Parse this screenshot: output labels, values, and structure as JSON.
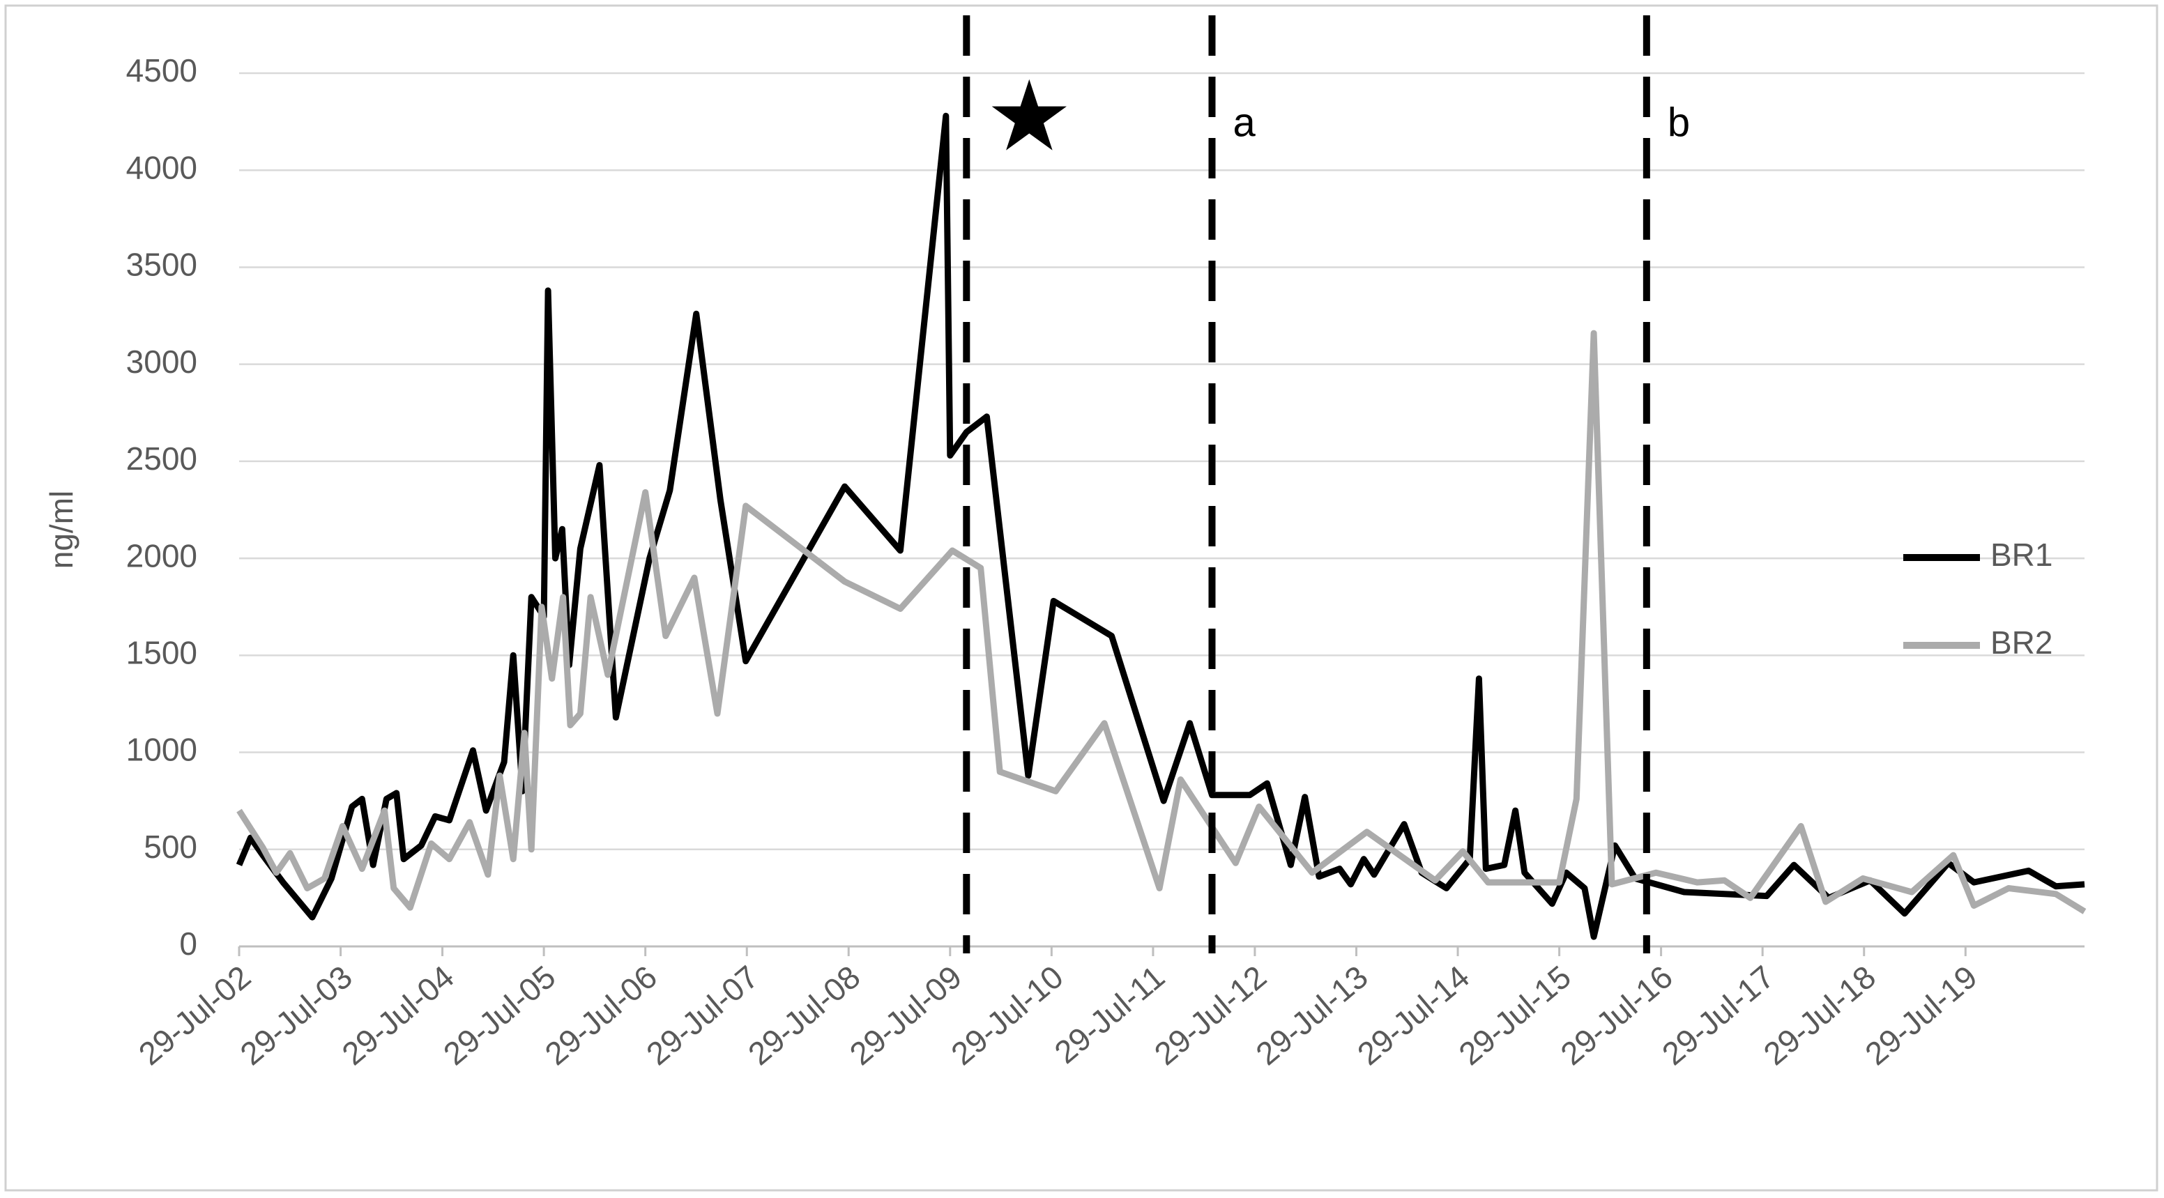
{
  "chart_data": {
    "type": "line",
    "y_label": "ng/ml",
    "ylim": [
      0,
      4500
    ],
    "yticks": [
      0,
      500,
      1000,
      1500,
      2000,
      2500,
      3000,
      3500,
      4000,
      4500
    ],
    "xlim": [
      "2002-07-29",
      "2020-09-29"
    ],
    "xticks": [
      {
        "value": "2002-07-29",
        "label": "29-Jul-02"
      },
      {
        "value": "2003-07-29",
        "label": "29-Jul-03"
      },
      {
        "value": "2004-07-29",
        "label": "29-Jul-04"
      },
      {
        "value": "2005-07-29",
        "label": "29-Jul-05"
      },
      {
        "value": "2006-07-29",
        "label": "29-Jul-06"
      },
      {
        "value": "2007-07-29",
        "label": "29-Jul-07"
      },
      {
        "value": "2008-07-29",
        "label": "29-Jul-08"
      },
      {
        "value": "2009-07-29",
        "label": "29-Jul-09"
      },
      {
        "value": "2010-07-29",
        "label": "29-Jul-10"
      },
      {
        "value": "2011-07-29",
        "label": "29-Jul-11"
      },
      {
        "value": "2012-07-29",
        "label": "29-Jul-12"
      },
      {
        "value": "2013-07-29",
        "label": "29-Jul-13"
      },
      {
        "value": "2014-07-29",
        "label": "29-Jul-14"
      },
      {
        "value": "2015-07-29",
        "label": "29-Jul-15"
      },
      {
        "value": "2016-07-29",
        "label": "29-Jul-16"
      },
      {
        "value": "2017-07-29",
        "label": "29-Jul-17"
      },
      {
        "value": "2018-07-29",
        "label": "29-Jul-18"
      },
      {
        "value": "2019-07-29",
        "label": "29-Jul-19"
      }
    ],
    "grid": true,
    "legend": "right",
    "vlines": [
      {
        "x": "2009-09-26",
        "label": "★"
      },
      {
        "x": "2012-02-26",
        "label": "a"
      },
      {
        "x": "2016-06-07",
        "label": "b"
      }
    ],
    "series": [
      {
        "name": "BR1",
        "color": "#000000",
        "x": [
          "2002-07-29",
          "2002-09-08",
          "2002-10-22",
          "2003-01-03",
          "2003-04-18",
          "2003-06-26",
          "2003-09-08",
          "2003-10-14",
          "2003-11-23",
          "2004-01-10",
          "2004-02-15",
          "2004-03-12",
          "2004-05-14",
          "2004-07-03",
          "2004-08-23",
          "2004-11-16",
          "2005-01-02",
          "2005-03-08",
          "2005-04-10",
          "2005-05-13",
          "2005-06-14",
          "2005-07-29",
          "2005-08-13",
          "2005-09-08",
          "2005-10-03",
          "2005-10-28",
          "2005-12-07",
          "2006-02-14",
          "2006-04-14",
          "2006-08-13",
          "2006-10-25",
          "2007-01-28",
          "2007-04-25",
          "2007-07-25",
          "2008-07-15",
          "2009-01-31",
          "2009-07-14",
          "2009-07-29",
          "2009-09-26",
          "2009-12-08",
          "2010-05-06",
          "2010-08-05",
          "2011-03-02",
          "2011-09-05",
          "2011-12-08",
          "2012-02-26",
          "2012-07-11",
          "2012-09-11",
          "2012-12-05",
          "2013-01-25",
          "2013-03-17",
          "2013-05-30",
          "2013-07-09",
          "2013-08-25",
          "2013-10-01",
          "2014-01-17",
          "2014-03-21",
          "2014-06-18",
          "2014-09-10",
          "2014-10-13",
          "2014-11-07",
          "2015-01-12",
          "2015-02-21",
          "2015-03-26",
          "2015-07-03",
          "2015-08-23",
          "2015-10-28",
          "2015-11-30",
          "2016-02-14",
          "2016-04-27",
          "2016-10-20",
          "2017-08-13",
          "2017-11-19",
          "2018-03-24",
          "2018-08-20",
          "2018-12-22",
          "2019-05-28",
          "2019-08-28",
          "2020-03-12",
          "2020-06-18",
          "2020-09-29"
        ],
        "values": [
          420,
          560,
          470,
          330,
          150,
          350,
          720,
          760,
          420,
          760,
          790,
          450,
          520,
          670,
          650,
          1010,
          700,
          950,
          1500,
          800,
          1800,
          1700,
          3380,
          2000,
          2150,
          1450,
          2050,
          2480,
          1180,
          2000,
          2350,
          3260,
          2300,
          1470,
          2370,
          2040,
          4280,
          2530,
          2650,
          2730,
          880,
          1780,
          1600,
          750,
          1150,
          780,
          780,
          840,
          420,
          770,
          360,
          400,
          320,
          450,
          370,
          630,
          380,
          300,
          450,
          1380,
          400,
          420,
          700,
          380,
          220,
          380,
          300,
          50,
          520,
          350,
          280,
          260,
          420,
          250,
          340,
          170,
          430,
          330,
          390,
          310,
          320
        ]
      },
      {
        "name": "BR2",
        "color": "#ababab",
        "x": [
          "2002-07-29",
          "2002-10-22",
          "2002-12-10",
          "2003-01-28",
          "2003-03-31",
          "2003-06-01",
          "2003-08-05",
          "2003-10-14",
          "2004-01-03",
          "2004-02-05",
          "2004-04-04",
          "2004-06-19",
          "2004-08-23",
          "2004-11-04",
          "2005-01-09",
          "2005-02-20",
          "2005-04-10",
          "2005-05-20",
          "2005-06-14",
          "2005-07-21",
          "2005-08-27",
          "2005-10-06",
          "2005-11-01",
          "2005-12-07",
          "2006-01-13",
          "2006-03-16",
          "2006-07-29",
          "2006-10-10",
          "2007-01-21",
          "2007-04-14",
          "2007-07-25",
          "2008-07-15",
          "2009-01-31",
          "2009-08-06",
          "2009-11-16",
          "2010-01-24",
          "2010-08-13",
          "2011-02-04",
          "2011-08-21",
          "2011-11-05",
          "2012-05-21",
          "2012-08-13",
          "2013-02-20",
          "2013-09-05",
          "2014-05-09",
          "2014-08-16",
          "2014-11-15",
          "2015-07-29",
          "2015-09-29",
          "2015-11-30",
          "2016-02-03",
          "2016-07-11",
          "2016-12-06",
          "2017-03-14",
          "2017-06-15",
          "2017-12-14",
          "2018-03-13",
          "2018-07-25",
          "2019-01-17",
          "2019-06-15",
          "2019-08-28",
          "2019-12-31",
          "2020-06-18",
          "2020-09-29"
        ],
        "values": [
          700,
          510,
          380,
          480,
          300,
          350,
          620,
          400,
          700,
          300,
          200,
          530,
          450,
          640,
          370,
          880,
          450,
          1100,
          500,
          1750,
          1380,
          1800,
          1140,
          1200,
          1800,
          1400,
          2340,
          1600,
          1900,
          1200,
          2270,
          1880,
          1740,
          2040,
          1950,
          900,
          800,
          1150,
          300,
          860,
          430,
          720,
          380,
          590,
          340,
          490,
          330,
          330,
          760,
          3160,
          320,
          380,
          330,
          340,
          250,
          620,
          230,
          350,
          280,
          470,
          210,
          300,
          270,
          180
        ]
      }
    ]
  }
}
